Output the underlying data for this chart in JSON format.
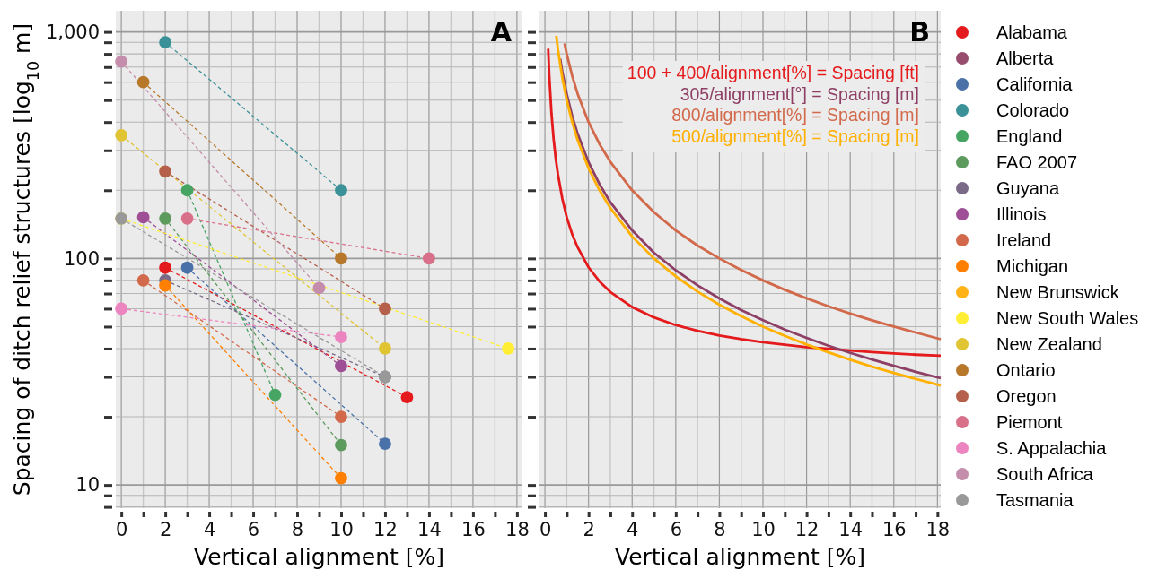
{
  "chart_data": [
    {
      "type": "line",
      "xlabel": "Vertical alignment [%]",
      "ylabel": "Spacing of ditch relief structures [log$_{10}$ m]",
      "annotations": [
        "A"
      ],
      "log": "y",
      "grid": true,
      "marker": "circle",
      "line_style": "dashed",
      "legend": "right",
      "xlim": [
        -0.25,
        18.25
      ],
      "ylim": [
        7.9,
        1240
      ],
      "xticks": [
        0,
        {
          "value": 1,
          "label": null
        },
        2,
        {
          "value": 3,
          "label": null
        },
        4,
        {
          "value": 5,
          "label": null
        },
        6,
        {
          "value": 7,
          "label": null
        },
        8,
        {
          "value": 9,
          "label": null
        },
        10,
        {
          "value": 11,
          "label": null
        },
        12,
        {
          "value": 13,
          "label": null
        },
        14,
        {
          "value": 15,
          "label": null
        },
        16,
        {
          "value": 17,
          "label": null
        },
        18
      ],
      "yticks": [
        {
          "value": 8,
          "label": null
        },
        {
          "value": 9,
          "label": null
        },
        10,
        {
          "value": 20,
          "label": null
        },
        {
          "value": 30,
          "label": null
        },
        {
          "value": 40,
          "label": null
        },
        {
          "value": 50,
          "label": null
        },
        {
          "value": 60,
          "label": null
        },
        {
          "value": 70,
          "label": null
        },
        {
          "value": 80,
          "label": null
        },
        {
          "value": 90,
          "label": null
        },
        100,
        {
          "value": 200,
          "label": null
        },
        {
          "value": 300,
          "label": null
        },
        {
          "value": 400,
          "label": null
        },
        {
          "value": 500,
          "label": null
        },
        {
          "value": 600,
          "label": null
        },
        {
          "value": 700,
          "label": null
        },
        {
          "value": 800,
          "label": null
        },
        {
          "value": 900,
          "label": null
        },
        {
          "value": 1000,
          "label": "1,000"
        }
      ],
      "series": [
        {
          "name": "Alabama",
          "color": "#e41a1c",
          "x": [
            2,
            13
          ],
          "values": [
            91,
            24.4
          ]
        },
        {
          "name": "Alberta",
          "color": "#984d6e"
        },
        {
          "name": "California",
          "color": "#4a72a8",
          "x": [
            3,
            12
          ],
          "values": [
            91,
            15.2
          ]
        },
        {
          "name": "Colorado",
          "color": "#3b9198",
          "x": [
            2,
            10
          ],
          "values": [
            900,
            200
          ]
        },
        {
          "name": "England",
          "color": "#47a563",
          "x": [
            3,
            7
          ],
          "values": [
            200,
            25
          ]
        },
        {
          "name": "FAO 2007",
          "color": "#5c9a5e",
          "x": [
            2,
            10
          ],
          "values": [
            150,
            15
          ]
        },
        {
          "name": "Guyana",
          "color": "#7a6a88",
          "x": [
            2,
            12
          ],
          "values": [
            80,
            30
          ]
        },
        {
          "name": "Illinois",
          "color": "#9e4f95",
          "x": [
            1,
            10
          ],
          "values": [
            152,
            33.5
          ]
        },
        {
          "name": "Ireland",
          "color": "#d2694a",
          "x": [
            1,
            10
          ],
          "values": [
            80,
            20
          ]
        },
        {
          "name": "Michigan",
          "color": "#ff7f00",
          "x": [
            2,
            10
          ],
          "values": [
            76,
            10.7
          ]
        },
        {
          "name": "New Brunswick",
          "color": "#ffb319"
        },
        {
          "name": "New South Wales",
          "color": "#ffee33",
          "x": [
            0,
            17.6
          ],
          "values": [
            150,
            40
          ]
        },
        {
          "name": "New Zealand",
          "color": "#e0c431",
          "x": [
            0,
            12
          ],
          "values": [
            350,
            40
          ]
        },
        {
          "name": "Ontario",
          "color": "#b8782b",
          "x": [
            1,
            10
          ],
          "values": [
            600,
            100
          ]
        },
        {
          "name": "Oregon",
          "color": "#b5604b",
          "x": [
            2,
            12
          ],
          "values": [
            242,
            60
          ]
        },
        {
          "name": "Piemont",
          "color": "#d9708a",
          "x": [
            3,
            14
          ],
          "values": [
            150,
            100
          ]
        },
        {
          "name": "S. Appalachia",
          "color": "#ec85bf",
          "x": [
            0,
            10
          ],
          "values": [
            60,
            45
          ]
        },
        {
          "name": "South Africa",
          "color": "#c48dab",
          "x": [
            0,
            9
          ],
          "values": [
            740,
            74
          ]
        },
        {
          "name": "Tasmania",
          "color": "#999999",
          "x": [
            0,
            12
          ],
          "values": [
            150,
            30
          ]
        }
      ]
    },
    {
      "type": "line",
      "xlabel": "Vertical alignment [%]",
      "annotations": [
        "B"
      ],
      "log": "y",
      "grid": true,
      "line_style": "solid",
      "legend": "top right",
      "tick_labels": "x",
      "xlim": [
        -0.25,
        18.15
      ],
      "ylim": [
        7.9,
        1240
      ],
      "xticks": [
        0,
        {
          "value": 1,
          "label": null
        },
        2,
        {
          "value": 3,
          "label": null
        },
        4,
        {
          "value": 5,
          "label": null
        },
        6,
        {
          "value": 7,
          "label": null
        },
        8,
        {
          "value": 9,
          "label": null
        },
        10,
        {
          "value": 11,
          "label": null
        },
        12,
        {
          "value": 13,
          "label": null
        },
        14,
        {
          "value": 15,
          "label": null
        },
        16,
        {
          "value": 17,
          "label": null
        },
        18
      ],
      "yticks": [
        {
          "value": 8,
          "label": null
        },
        {
          "value": 9,
          "label": null
        },
        10,
        {
          "value": 20,
          "label": null
        },
        {
          "value": 30,
          "label": null
        },
        {
          "value": 40,
          "label": null
        },
        {
          "value": 50,
          "label": null
        },
        {
          "value": 60,
          "label": null
        },
        {
          "value": 70,
          "label": null
        },
        {
          "value": 80,
          "label": null
        },
        {
          "value": 90,
          "label": null
        },
        100,
        {
          "value": 200,
          "label": null
        },
        {
          "value": 300,
          "label": null
        },
        {
          "value": 400,
          "label": null
        },
        {
          "value": 500,
          "label": null
        },
        {
          "value": 600,
          "label": null
        },
        {
          "value": 700,
          "label": null
        },
        {
          "value": 800,
          "label": null
        },
        {
          "value": 900,
          "label": null
        },
        1000
      ],
      "series": [
        {
          "name": "100 + 400/alignment[%] = Spacing [ft]",
          "color": "#e41a1c",
          "x": [
            0.15,
            0.2,
            0.3,
            0.4,
            0.5,
            0.6,
            0.8,
            1,
            1.25,
            1.5,
            2,
            2.5,
            3,
            4,
            5,
            6,
            7,
            8,
            9,
            10,
            11,
            12,
            13,
            14,
            15,
            16,
            17,
            18.15
          ],
          "values": [
            843,
            640,
            437,
            335,
            274,
            234,
            183,
            152,
            128,
            112,
            91.4,
            79.2,
            71.1,
            61,
            54.9,
            50.8,
            47.9,
            45.7,
            44,
            42.7,
            41.6,
            40.6,
            39.9,
            39.2,
            38.6,
            38.1,
            37.6,
            37.2
          ]
        },
        {
          "name": "305/alignment[°] = Spacing [m]",
          "color": "#8e3f65",
          "x": [
            0.7,
            0.8,
            1,
            1.25,
            1.5,
            2,
            2.5,
            3,
            4,
            5,
            6,
            7,
            8,
            9,
            10,
            11,
            12,
            13,
            14,
            15,
            16,
            17,
            18.15
          ],
          "values": [
            761,
            665,
            532,
            426,
            355,
            266,
            213,
            177,
            133,
            106,
            88.7,
            76.1,
            66.6,
            59.2,
            53.4,
            48.5,
            44.6,
            41.2,
            38.3,
            35.8,
            33.6,
            31.6,
            29.6
          ]
        },
        {
          "name": "800/alignment[%] = Spacing [m]",
          "color": "#d2694a",
          "x": [
            0.9,
            1,
            1.25,
            1.5,
            2,
            2.5,
            3,
            4,
            5,
            6,
            7,
            8,
            9,
            10,
            11,
            12,
            13,
            14,
            15,
            16,
            17,
            18.15
          ],
          "values": [
            889,
            800,
            640,
            533,
            400,
            320,
            267,
            200,
            160,
            133,
            114,
            100,
            88.9,
            80,
            72.7,
            66.7,
            61.5,
            57.1,
            53.3,
            50,
            47.1,
            44
          ]
        },
        {
          "name": "500/alignment[%] = Spacing [m]",
          "color": "#ffb000",
          "x": [
            0.52,
            0.6,
            0.8,
            1,
            1.25,
            1.5,
            2,
            2.5,
            3,
            4,
            5,
            6,
            7,
            8,
            9,
            10,
            11,
            12,
            13,
            14,
            15,
            16,
            17,
            18.15
          ],
          "values": [
            962,
            833,
            625,
            500,
            400,
            333,
            250,
            200,
            167,
            125,
            100,
            83.3,
            71.4,
            62.5,
            55.6,
            50,
            45.5,
            41.7,
            38.5,
            35.7,
            33.3,
            31.25,
            29.4,
            27.5
          ]
        }
      ]
    }
  ]
}
